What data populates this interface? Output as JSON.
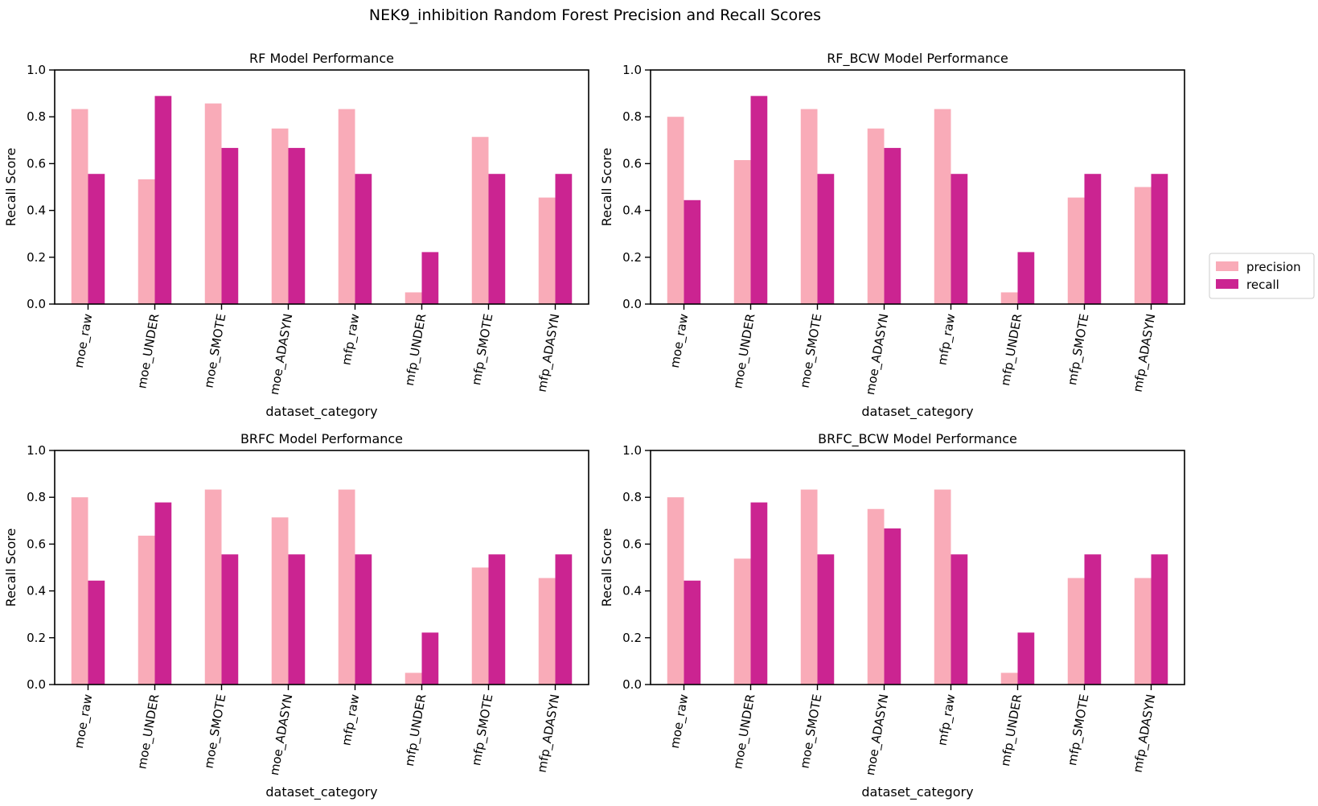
{
  "figure": {
    "suptitle": "NEK9_inhibition Random Forest Precision and Recall Scores"
  },
  "legend": {
    "placement": "right-center",
    "entries": [
      {
        "name": "precision",
        "color": "#f9abb8"
      },
      {
        "name": "recall",
        "color": "#cb2491"
      }
    ]
  },
  "chart_data": [
    {
      "type": "bar",
      "title": "RF Model Performance",
      "xlabel": "dataset_category",
      "ylabel": "Recall Score",
      "ylim": [
        0,
        1.0
      ],
      "yticks": [
        "0.0",
        "0.2",
        "0.4",
        "0.6",
        "0.8",
        "1.0"
      ],
      "categories": [
        "moe_raw",
        "moe_UNDER",
        "moe_SMOTE",
        "moe_ADASYN",
        "mfp_raw",
        "mfp_UNDER",
        "mfp_SMOTE",
        "mfp_ADASYN"
      ],
      "series": [
        {
          "name": "precision",
          "color": "#f9abb8",
          "values": [
            0.833,
            0.533,
            0.857,
            0.75,
            0.833,
            0.05,
            0.714,
            0.455
          ]
        },
        {
          "name": "recall",
          "color": "#cb2491",
          "values": [
            0.556,
            0.889,
            0.667,
            0.667,
            0.556,
            0.222,
            0.556,
            0.556
          ]
        }
      ]
    },
    {
      "type": "bar",
      "title": "RF_BCW Model Performance",
      "xlabel": "dataset_category",
      "ylabel": "Recall Score",
      "ylim": [
        0,
        1.0
      ],
      "yticks": [
        "0.0",
        "0.2",
        "0.4",
        "0.6",
        "0.8",
        "1.0"
      ],
      "categories": [
        "moe_raw",
        "moe_UNDER",
        "moe_SMOTE",
        "moe_ADASYN",
        "mfp_raw",
        "mfp_UNDER",
        "mfp_SMOTE",
        "mfp_ADASYN"
      ],
      "series": [
        {
          "name": "precision",
          "color": "#f9abb8",
          "values": [
            0.8,
            0.615,
            0.833,
            0.75,
            0.833,
            0.05,
            0.455,
            0.5
          ]
        },
        {
          "name": "recall",
          "color": "#cb2491",
          "values": [
            0.444,
            0.889,
            0.556,
            0.667,
            0.556,
            0.222,
            0.556,
            0.556
          ]
        }
      ]
    },
    {
      "type": "bar",
      "title": "BRFC Model Performance",
      "xlabel": "dataset_category",
      "ylabel": "Recall Score",
      "ylim": [
        0,
        1.0
      ],
      "yticks": [
        "0.0",
        "0.2",
        "0.4",
        "0.6",
        "0.8",
        "1.0"
      ],
      "categories": [
        "moe_raw",
        "moe_UNDER",
        "moe_SMOTE",
        "moe_ADASYN",
        "mfp_raw",
        "mfp_UNDER",
        "mfp_SMOTE",
        "mfp_ADASYN"
      ],
      "series": [
        {
          "name": "precision",
          "color": "#f9abb8",
          "values": [
            0.8,
            0.636,
            0.833,
            0.714,
            0.833,
            0.05,
            0.5,
            0.455
          ]
        },
        {
          "name": "recall",
          "color": "#cb2491",
          "values": [
            0.444,
            0.778,
            0.556,
            0.556,
            0.556,
            0.222,
            0.556,
            0.556
          ]
        }
      ]
    },
    {
      "type": "bar",
      "title": "BRFC_BCW Model Performance",
      "xlabel": "dataset_category",
      "ylabel": "Recall Score",
      "ylim": [
        0,
        1.0
      ],
      "yticks": [
        "0.0",
        "0.2",
        "0.4",
        "0.6",
        "0.8",
        "1.0"
      ],
      "categories": [
        "moe_raw",
        "moe_UNDER",
        "moe_SMOTE",
        "moe_ADASYN",
        "mfp_raw",
        "mfp_UNDER",
        "mfp_SMOTE",
        "mfp_ADASYN"
      ],
      "series": [
        {
          "name": "precision",
          "color": "#f9abb8",
          "values": [
            0.8,
            0.538,
            0.833,
            0.75,
            0.833,
            0.05,
            0.455,
            0.455
          ]
        },
        {
          "name": "recall",
          "color": "#cb2491",
          "values": [
            0.444,
            0.778,
            0.556,
            0.667,
            0.556,
            0.222,
            0.556,
            0.556
          ]
        }
      ]
    }
  ]
}
